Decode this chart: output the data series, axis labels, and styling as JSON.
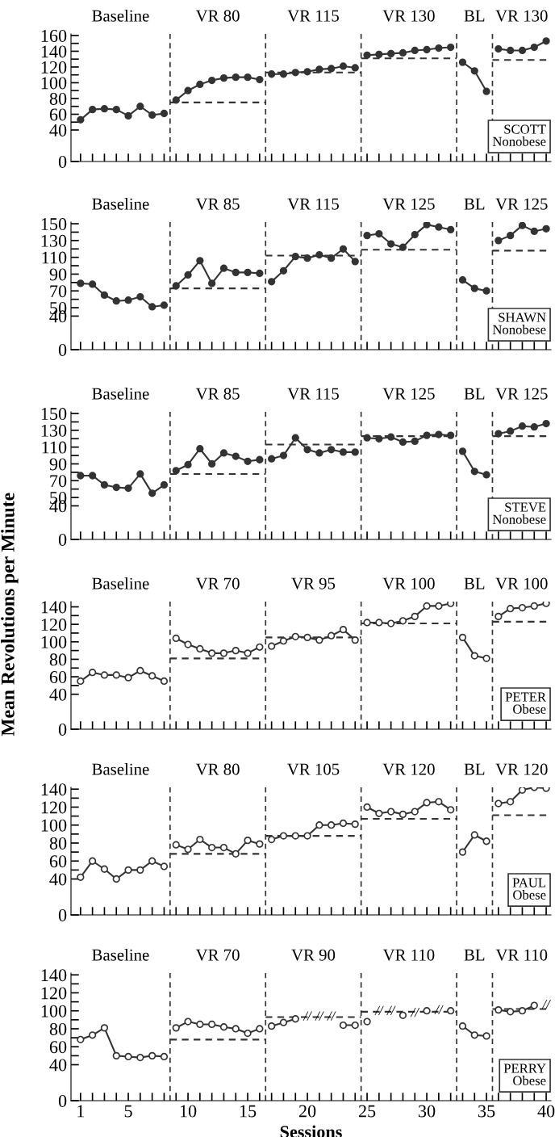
{
  "chart_data": [
    {
      "type": "line",
      "marker": "circle",
      "tick_labels": "y",
      "xlim": [
        0.2,
        40.4
      ],
      "xticks": [
        1,
        5,
        10,
        15,
        20,
        25,
        30,
        35,
        40
      ],
      "ylim": [
        0,
        162
      ],
      "yticks": [
        0,
        40,
        {
          "value": 50,
          "label": null
        },
        60,
        {
          "value": 70,
          "label": null
        },
        80,
        {
          "value": 90,
          "label": null
        },
        100,
        {
          "value": 110,
          "label": null
        },
        120,
        {
          "value": 130,
          "label": null
        },
        140,
        {
          "value": 150,
          "label": null
        },
        160
      ],
      "ref_lines": [
        {
          "axis": "x",
          "value": 8.5,
          "line_style": "dashed",
          "color": "#333333"
        },
        {
          "axis": "x",
          "value": 16.5,
          "line_style": "dashed",
          "color": "#333333"
        },
        {
          "axis": "x",
          "value": 24.5,
          "line_style": "dashed",
          "color": "#333333"
        },
        {
          "axis": "x",
          "value": 32.5,
          "line_style": "dashed",
          "color": "#333333"
        },
        {
          "axis": "x",
          "value": 35.5,
          "line_style": "dashed",
          "color": "#333333"
        }
      ],
      "annotations": [
        "Baseline",
        "VR 80",
        "VR 115",
        "VR 130",
        "BL",
        "VR 130",
        "SCOTT\nNonobese"
      ],
      "series": [
        {
          "color": "#333333",
          "line_style": "solid",
          "x": [
            1,
            2,
            3,
            4,
            5,
            6,
            7,
            8
          ],
          "values": [
            53,
            66,
            67,
            66,
            58,
            70,
            59,
            61
          ],
          "colors": [
            "#333333",
            "#333333",
            "#333333",
            "#333333",
            "#333333",
            "#333333",
            "#333333",
            "#333333"
          ]
        },
        {
          "color": "#333333",
          "line_style": "solid",
          "x": [
            9,
            10,
            11,
            12,
            13,
            14,
            15,
            16
          ],
          "values": [
            78,
            90,
            98,
            103,
            106,
            107,
            107,
            104
          ],
          "colors": [
            "#333333",
            "#333333",
            "#333333",
            "#333333",
            "#333333",
            "#333333",
            "#333333",
            "#333333"
          ]
        },
        {
          "color": "#333333",
          "line_style": "solid",
          "x": [
            17,
            18,
            19,
            20,
            21,
            22,
            23,
            24
          ],
          "values": [
            111,
            111,
            113,
            114,
            117,
            118,
            121,
            119
          ],
          "colors": [
            "#333333",
            "#333333",
            "#333333",
            "#333333",
            "#333333",
            "#333333",
            "#333333",
            "#333333"
          ]
        },
        {
          "color": "#333333",
          "line_style": "solid",
          "x": [
            25,
            26,
            27,
            28,
            29,
            30,
            31,
            32
          ],
          "values": [
            135,
            136,
            137,
            138,
            141,
            142,
            144,
            145
          ],
          "colors": [
            "#333333",
            "#333333",
            "#333333",
            "#333333",
            "#333333",
            "#333333",
            "#333333",
            "#333333"
          ]
        },
        {
          "color": "#333333",
          "line_style": "solid",
          "x": [
            33,
            34,
            35
          ],
          "values": [
            126,
            115,
            89
          ],
          "colors": [
            "#333333",
            "#333333",
            "#333333"
          ]
        },
        {
          "color": "#333333",
          "line_style": "solid",
          "x": [
            36,
            37,
            38,
            39,
            40
          ],
          "values": [
            143,
            141,
            141,
            145,
            153
          ],
          "colors": [
            "#333333",
            "#333333",
            "#333333",
            "#333333",
            "#333333"
          ]
        },
        {
          "color": "#333333",
          "line_style": "dashed",
          "marker": "none",
          "x": [
            8.5,
            16.5
          ],
          "values": [
            75,
            75
          ]
        },
        {
          "color": "#333333",
          "line_style": "dashed",
          "marker": "none",
          "x": [
            16.5,
            24.5
          ],
          "values": [
            113,
            113
          ]
        },
        {
          "color": "#333333",
          "line_style": "dashed",
          "marker": "none",
          "x": [
            24.5,
            32.5
          ],
          "values": [
            131,
            131
          ]
        },
        {
          "color": "#333333",
          "line_style": "dashed",
          "marker": "none",
          "x": [
            35.5,
            40.4
          ],
          "values": [
            129,
            129
          ]
        }
      ]
    },
    {
      "type": "line",
      "marker": "circle",
      "tick_labels": "y",
      "xlim": [
        0.2,
        40.4
      ],
      "xticks": [
        1,
        5,
        10,
        15,
        20,
        25,
        30,
        35,
        40
      ],
      "ylim": [
        0,
        152
      ],
      "yticks": [
        0,
        40,
        50,
        {
          "value": 60,
          "label": null
        },
        70,
        {
          "value": 80,
          "label": null
        },
        90,
        {
          "value": 100,
          "label": null
        },
        110,
        {
          "value": 120,
          "label": null
        },
        130,
        {
          "value": 140,
          "label": null
        },
        150
      ],
      "ref_lines": [
        {
          "axis": "x",
          "value": 8.5,
          "line_style": "dashed",
          "color": "#333333"
        },
        {
          "axis": "x",
          "value": 16.5,
          "line_style": "dashed",
          "color": "#333333"
        },
        {
          "axis": "x",
          "value": 24.5,
          "line_style": "dashed",
          "color": "#333333"
        },
        {
          "axis": "x",
          "value": 32.5,
          "line_style": "dashed",
          "color": "#333333"
        },
        {
          "axis": "x",
          "value": 35.5,
          "line_style": "dashed",
          "color": "#333333"
        }
      ],
      "annotations": [
        "Baseline",
        "VR 85",
        "VR 115",
        "VR 125",
        "BL",
        "VR 125",
        "SHAWN\nNonobese"
      ],
      "series": [
        {
          "color": "#333333",
          "line_style": "solid",
          "x": [
            1,
            2,
            3,
            4,
            5,
            6,
            7,
            8
          ],
          "values": [
            79,
            78,
            65,
            58,
            59,
            63,
            51,
            53
          ],
          "colors": [
            "#333333",
            "#333333",
            "#333333",
            "#333333",
            "#333333",
            "#333333",
            "#333333",
            "#333333"
          ]
        },
        {
          "color": "#333333",
          "line_style": "solid",
          "x": [
            9,
            10,
            11,
            12,
            13,
            14,
            15,
            16
          ],
          "values": [
            76,
            89,
            106,
            79,
            97,
            92,
            92,
            91
          ],
          "colors": [
            "#333333",
            "#333333",
            "#333333",
            "#333333",
            "#333333",
            "#333333",
            "#333333",
            "#333333"
          ]
        },
        {
          "color": "#333333",
          "line_style": "solid",
          "x": [
            17,
            18,
            19,
            20,
            21,
            22,
            23,
            24
          ],
          "values": [
            81,
            94,
            111,
            109,
            113,
            109,
            120,
            105
          ],
          "colors": [
            "#333333",
            "#333333",
            "#333333",
            "#333333",
            "#333333",
            "#333333",
            "#333333",
            "#333333"
          ]
        },
        {
          "color": "#333333",
          "line_style": "solid",
          "x": [
            25,
            26,
            27,
            28,
            29,
            30,
            31,
            32
          ],
          "values": [
            136,
            138,
            126,
            122,
            137,
            149,
            146,
            143
          ],
          "colors": [
            "#333333",
            "#333333",
            "#333333",
            "#333333",
            "#333333",
            "#333333",
            "#333333",
            "#333333"
          ]
        },
        {
          "color": "#333333",
          "line_style": "solid",
          "x": [
            33,
            34,
            35
          ],
          "values": [
            83,
            73,
            70
          ],
          "colors": [
            "#333333",
            "#333333",
            "#333333"
          ]
        },
        {
          "color": "#333333",
          "line_style": "solid",
          "x": [
            36,
            37,
            38,
            39,
            40
          ],
          "values": [
            130,
            136,
            148,
            141,
            144
          ],
          "colors": [
            "#333333",
            "#333333",
            "#333333",
            "#333333",
            "#333333"
          ]
        },
        {
          "color": "#333333",
          "line_style": "dashed",
          "marker": "none",
          "x": [
            8.5,
            16.5
          ],
          "values": [
            73,
            73
          ]
        },
        {
          "color": "#333333",
          "line_style": "dashed",
          "marker": "none",
          "x": [
            16.5,
            24.5
          ],
          "values": [
            112,
            112
          ]
        },
        {
          "color": "#333333",
          "line_style": "dashed",
          "marker": "none",
          "x": [
            24.5,
            32.5
          ],
          "values": [
            119,
            119
          ]
        },
        {
          "color": "#333333",
          "line_style": "dashed",
          "marker": "none",
          "x": [
            35.5,
            40.4
          ],
          "values": [
            118,
            118
          ]
        }
      ]
    },
    {
      "type": "line",
      "marker": "circle",
      "tick_labels": "y",
      "xlim": [
        0.2,
        40.4
      ],
      "xticks": [
        1,
        5,
        10,
        15,
        20,
        25,
        30,
        35,
        40
      ],
      "ylim": [
        0,
        152
      ],
      "yticks": [
        0,
        40,
        50,
        {
          "value": 60,
          "label": null
        },
        70,
        {
          "value": 80,
          "label": null
        },
        90,
        {
          "value": 100,
          "label": null
        },
        110,
        {
          "value": 120,
          "label": null
        },
        130,
        {
          "value": 140,
          "label": null
        },
        150
      ],
      "ref_lines": [
        {
          "axis": "x",
          "value": 8.5,
          "line_style": "dashed",
          "color": "#333333"
        },
        {
          "axis": "x",
          "value": 16.5,
          "line_style": "dashed",
          "color": "#333333"
        },
        {
          "axis": "x",
          "value": 24.5,
          "line_style": "dashed",
          "color": "#333333"
        },
        {
          "axis": "x",
          "value": 32.5,
          "line_style": "dashed",
          "color": "#333333"
        },
        {
          "axis": "x",
          "value": 35.5,
          "line_style": "dashed",
          "color": "#333333"
        }
      ],
      "annotations": [
        "Baseline",
        "VR 85",
        "VR 115",
        "VR 125",
        "BL",
        "VR 125",
        "STEVE\nNonobese"
      ],
      "series": [
        {
          "color": "#333333",
          "line_style": "solid",
          "x": [
            1,
            2,
            3,
            4,
            5,
            6,
            7,
            8
          ],
          "values": [
            76,
            76,
            65,
            62,
            61,
            78,
            55,
            65
          ],
          "colors": [
            "#333333",
            "#333333",
            "#333333",
            "#333333",
            "#333333",
            "#333333",
            "#333333",
            "#333333"
          ]
        },
        {
          "color": "#333333",
          "line_style": "solid",
          "x": [
            9,
            10,
            11,
            12,
            13,
            14,
            15,
            16
          ],
          "values": [
            82,
            89,
            108,
            90,
            103,
            99,
            93,
            95
          ],
          "colors": [
            "#333333",
            "#333333",
            "#333333",
            "#333333",
            "#333333",
            "#333333",
            "#333333",
            "#333333"
          ]
        },
        {
          "color": "#333333",
          "line_style": "solid",
          "x": [
            17,
            18,
            19,
            20,
            21,
            22,
            23,
            24
          ],
          "values": [
            96,
            100,
            121,
            107,
            103,
            107,
            104,
            104
          ],
          "colors": [
            "#333333",
            "#333333",
            "#333333",
            "#333333",
            "#333333",
            "#333333",
            "#333333",
            "#333333"
          ]
        },
        {
          "color": "#333333",
          "line_style": "solid",
          "x": [
            25,
            26,
            27,
            28,
            29,
            30,
            31,
            32
          ],
          "values": [
            121,
            120,
            122,
            116,
            117,
            124,
            125,
            124
          ],
          "colors": [
            "#333333",
            "#333333",
            "#333333",
            "#333333",
            "#333333",
            "#333333",
            "#333333",
            "#333333"
          ]
        },
        {
          "color": "#333333",
          "line_style": "solid",
          "x": [
            33,
            34,
            35
          ],
          "values": [
            105,
            81,
            77
          ],
          "colors": [
            "#333333",
            "#333333",
            "#333333"
          ]
        },
        {
          "color": "#333333",
          "line_style": "solid",
          "x": [
            36,
            37,
            38,
            39,
            40
          ],
          "values": [
            126,
            129,
            135,
            134,
            138
          ],
          "colors": [
            "#333333",
            "#333333",
            "#333333",
            "#333333",
            "#333333"
          ]
        },
        {
          "color": "#333333",
          "line_style": "dashed",
          "marker": "none",
          "x": [
            8.5,
            16.5
          ],
          "values": [
            78,
            78
          ]
        },
        {
          "color": "#333333",
          "line_style": "dashed",
          "marker": "none",
          "x": [
            16.5,
            24.5
          ],
          "values": [
            113,
            113
          ]
        },
        {
          "color": "#333333",
          "line_style": "dashed",
          "marker": "none",
          "x": [
            24.5,
            32.5
          ],
          "values": [
            123,
            123
          ]
        },
        {
          "color": "#333333",
          "line_style": "dashed",
          "marker": "none",
          "x": [
            35.5,
            40.4
          ],
          "values": [
            123,
            123
          ]
        }
      ]
    },
    {
      "type": "line",
      "marker": "circle",
      "tick_labels": "y",
      "ylabel": "Mean Revolutions per Minute",
      "xlim": [
        0.2,
        40.4
      ],
      "xticks": [
        1,
        5,
        10,
        15,
        20,
        25,
        30,
        35,
        40
      ],
      "ylim": [
        0,
        146
      ],
      "yticks": [
        0,
        40,
        {
          "value": 50,
          "label": null
        },
        60,
        {
          "value": 70,
          "label": null
        },
        80,
        {
          "value": 90,
          "label": null
        },
        100,
        {
          "value": 110,
          "label": null
        },
        120,
        {
          "value": 130,
          "label": null
        },
        140
      ],
      "ref_lines": [
        {
          "axis": "x",
          "value": 8.5,
          "line_style": "dashed",
          "color": "#333333"
        },
        {
          "axis": "x",
          "value": 16.5,
          "line_style": "dashed",
          "color": "#333333"
        },
        {
          "axis": "x",
          "value": 24.5,
          "line_style": "dashed",
          "color": "#333333"
        },
        {
          "axis": "x",
          "value": 32.5,
          "line_style": "dashed",
          "color": "#333333"
        },
        {
          "axis": "x",
          "value": 35.5,
          "line_style": "dashed",
          "color": "#333333"
        }
      ],
      "annotations": [
        "Baseline",
        "VR 70",
        "VR 95",
        "VR 100",
        "BL",
        "VR 100",
        "PETER\nObese"
      ],
      "series": [
        {
          "color": "#333333",
          "line_style": "solid",
          "x": [
            1,
            2,
            3,
            4,
            5,
            6,
            7,
            8
          ],
          "values": [
            55,
            65,
            62,
            62,
            59,
            67,
            61,
            55
          ],
          "colors": [
            "#ffffff",
            "#ffffff",
            "#ffffff",
            "#ffffff",
            "#ffffff",
            "#ffffff",
            "#ffffff",
            "#ffffff"
          ]
        },
        {
          "color": "#333333",
          "line_style": "solid",
          "x": [
            9,
            10,
            11,
            12,
            13,
            14,
            15,
            16
          ],
          "values": [
            104,
            97,
            92,
            87,
            87,
            90,
            87,
            94
          ],
          "colors": [
            "#ffffff",
            "#ffffff",
            "#ffffff",
            "#ffffff",
            "#ffffff",
            "#ffffff",
            "#ffffff",
            "#ffffff"
          ]
        },
        {
          "color": "#333333",
          "line_style": "solid",
          "x": [
            17,
            18,
            19,
            20,
            21,
            22,
            23,
            24
          ],
          "values": [
            95,
            101,
            106,
            105,
            102,
            107,
            114,
            102
          ],
          "colors": [
            "#ffffff",
            "#ffffff",
            "#ffffff",
            "#ffffff",
            "#ffffff",
            "#ffffff",
            "#ffffff",
            "#ffffff"
          ]
        },
        {
          "color": "#333333",
          "line_style": "solid",
          "x": [
            25,
            26,
            27,
            28,
            29,
            30,
            31,
            32
          ],
          "values": [
            122,
            122,
            121,
            124,
            129,
            141,
            141,
            144
          ],
          "colors": [
            "#ffffff",
            "#ffffff",
            "#ffffff",
            "#ffffff",
            "#ffffff",
            "#ffffff",
            "#ffffff",
            "#ffffff"
          ]
        },
        {
          "color": "#333333",
          "line_style": "solid",
          "x": [
            33,
            34,
            35
          ],
          "values": [
            105,
            84,
            81
          ],
          "colors": [
            "#ffffff",
            "#ffffff",
            "#ffffff"
          ]
        },
        {
          "color": "#333333",
          "line_style": "solid",
          "x": [
            36,
            37,
            38,
            39,
            40
          ],
          "values": [
            129,
            138,
            139,
            141,
            144
          ],
          "colors": [
            "#ffffff",
            "#ffffff",
            "#ffffff",
            "#ffffff",
            "#ffffff"
          ]
        },
        {
          "color": "#333333",
          "line_style": "dashed",
          "marker": "none",
          "x": [
            8.5,
            16.5
          ],
          "values": [
            81,
            81
          ]
        },
        {
          "color": "#333333",
          "line_style": "dashed",
          "marker": "none",
          "x": [
            16.5,
            24.5
          ],
          "values": [
            105,
            105
          ]
        },
        {
          "color": "#333333",
          "line_style": "dashed",
          "marker": "none",
          "x": [
            24.5,
            32.5
          ],
          "values": [
            121,
            121
          ]
        },
        {
          "color": "#333333",
          "line_style": "dashed",
          "marker": "none",
          "x": [
            35.5,
            40.4
          ],
          "values": [
            123,
            123
          ]
        }
      ]
    },
    {
      "type": "line",
      "marker": "circle",
      "tick_labels": "y",
      "xlim": [
        0.2,
        40.4
      ],
      "xticks": [
        1,
        5,
        10,
        15,
        20,
        25,
        30,
        35,
        40
      ],
      "ylim": [
        0,
        142
      ],
      "yticks": [
        0,
        40,
        {
          "value": 50,
          "label": null
        },
        60,
        {
          "value": 70,
          "label": null
        },
        80,
        {
          "value": 90,
          "label": null
        },
        100,
        {
          "value": 110,
          "label": null
        },
        120,
        {
          "value": 130,
          "label": null
        },
        140
      ],
      "ref_lines": [
        {
          "axis": "x",
          "value": 8.5,
          "line_style": "dashed",
          "color": "#333333"
        },
        {
          "axis": "x",
          "value": 16.5,
          "line_style": "dashed",
          "color": "#333333"
        },
        {
          "axis": "x",
          "value": 24.5,
          "line_style": "dashed",
          "color": "#333333"
        },
        {
          "axis": "x",
          "value": 32.5,
          "line_style": "dashed",
          "color": "#333333"
        },
        {
          "axis": "x",
          "value": 35.5,
          "line_style": "dashed",
          "color": "#333333"
        }
      ],
      "annotations": [
        "Baseline",
        "VR 80",
        "VR 105",
        "VR 120",
        "BL",
        "VR 120",
        "PAUL\nObese"
      ],
      "series": [
        {
          "color": "#333333",
          "line_style": "solid",
          "x": [
            1,
            2,
            3,
            4,
            5,
            6,
            7,
            8
          ],
          "values": [
            42,
            60,
            51,
            40,
            50,
            50,
            60,
            54
          ],
          "colors": [
            "#ffffff",
            "#ffffff",
            "#ffffff",
            "#ffffff",
            "#ffffff",
            "#ffffff",
            "#ffffff",
            "#ffffff"
          ]
        },
        {
          "color": "#333333",
          "line_style": "solid",
          "x": [
            9,
            10,
            11,
            12,
            13,
            14,
            15,
            16
          ],
          "values": [
            78,
            73,
            84,
            75,
            75,
            68,
            83,
            79
          ],
          "colors": [
            "#ffffff",
            "#ffffff",
            "#ffffff",
            "#ffffff",
            "#ffffff",
            "#ffffff",
            "#ffffff",
            "#ffffff"
          ]
        },
        {
          "color": "#333333",
          "line_style": "solid",
          "x": [
            17,
            18,
            19,
            20,
            21,
            22,
            23,
            24
          ],
          "values": [
            84,
            88,
            88,
            88,
            100,
            100,
            102,
            101
          ],
          "colors": [
            "#ffffff",
            "#ffffff",
            "#ffffff",
            "#ffffff",
            "#ffffff",
            "#ffffff",
            "#ffffff",
            "#ffffff"
          ]
        },
        {
          "color": "#333333",
          "line_style": "solid",
          "x": [
            25,
            26,
            27,
            28,
            29,
            30,
            31,
            32
          ],
          "values": [
            120,
            113,
            115,
            112,
            115,
            125,
            126,
            117
          ],
          "colors": [
            "#ffffff",
            "#ffffff",
            "#ffffff",
            "#ffffff",
            "#ffffff",
            "#ffffff",
            "#ffffff",
            "#ffffff"
          ]
        },
        {
          "color": "#333333",
          "line_style": "solid",
          "x": [
            33,
            34,
            35
          ],
          "values": [
            70,
            89,
            82
          ],
          "colors": [
            "#ffffff",
            "#ffffff",
            "#ffffff"
          ]
        },
        {
          "color": "#333333",
          "line_style": "solid",
          "x": [
            36,
            37,
            38,
            39,
            40
          ],
          "values": [
            124,
            126,
            139,
            142,
            141
          ],
          "colors": [
            "#ffffff",
            "#ffffff",
            "#ffffff",
            "#ffffff",
            "#ffffff"
          ]
        },
        {
          "color": "#333333",
          "line_style": "dashed",
          "marker": "none",
          "x": [
            8.5,
            16.5
          ],
          "values": [
            68,
            68
          ]
        },
        {
          "color": "#333333",
          "line_style": "dashed",
          "marker": "none",
          "x": [
            16.5,
            24.5
          ],
          "values": [
            88,
            88
          ]
        },
        {
          "color": "#333333",
          "line_style": "dashed",
          "marker": "none",
          "x": [
            24.5,
            32.5
          ],
          "values": [
            107,
            107
          ]
        },
        {
          "color": "#333333",
          "line_style": "dashed",
          "marker": "none",
          "x": [
            35.5,
            40.4
          ],
          "values": [
            111,
            111
          ]
        }
      ]
    },
    {
      "type": "line",
      "marker": "circle",
      "xlabel": "Sessions",
      "xlim": [
        0.2,
        40.4
      ],
      "xticks": [
        1,
        5,
        10,
        15,
        20,
        25,
        30,
        35,
        40
      ],
      "ylim": [
        0,
        142
      ],
      "yticks": [
        0,
        40,
        {
          "value": 50,
          "label": null
        },
        60,
        {
          "value": 70,
          "label": null
        },
        80,
        {
          "value": 90,
          "label": null
        },
        100,
        {
          "value": 110,
          "label": null
        },
        120,
        {
          "value": 130,
          "label": null
        },
        140
      ],
      "ref_lines": [
        {
          "axis": "x",
          "value": 8.5,
          "line_style": "dashed",
          "color": "#333333"
        },
        {
          "axis": "x",
          "value": 16.5,
          "line_style": "dashed",
          "color": "#333333"
        },
        {
          "axis": "x",
          "value": 24.5,
          "line_style": "dashed",
          "color": "#333333"
        },
        {
          "axis": "x",
          "value": 32.5,
          "line_style": "dashed",
          "color": "#333333"
        },
        {
          "axis": "x",
          "value": 35.5,
          "line_style": "dashed",
          "color": "#333333"
        }
      ],
      "annotations": [
        "Baseline",
        "VR 70",
        "VR 90",
        "VR 110",
        "BL",
        "VR 110",
        "PERRY\nObese",
        {
          "text": "//",
          "x": 20,
          "y": 93
        },
        {
          "text": "//",
          "x": 21,
          "y": 93
        },
        {
          "text": "//",
          "x": 22,
          "y": 93
        },
        {
          "text": "//",
          "x": 26,
          "y": 99
        },
        {
          "text": "//",
          "x": 27,
          "y": 99
        },
        {
          "text": "//",
          "x": 29,
          "y": 97
        },
        {
          "text": "//",
          "x": 31,
          "y": 100
        },
        {
          "text": "//",
          "x": 40,
          "y": 106
        }
      ],
      "series": [
        {
          "color": "#333333",
          "line_style": "solid",
          "x": [
            1,
            2,
            3,
            4,
            5,
            6,
            7,
            8
          ],
          "values": [
            68,
            73,
            81,
            50,
            49,
            48,
            50,
            49
          ],
          "colors": [
            "#ffffff",
            "#ffffff",
            "#ffffff",
            "#ffffff",
            "#ffffff",
            "#ffffff",
            "#ffffff",
            "#ffffff"
          ]
        },
        {
          "color": "#333333",
          "line_style": "solid",
          "x": [
            9,
            10,
            11,
            12,
            13,
            14,
            15,
            16
          ],
          "values": [
            81,
            88,
            85,
            85,
            82,
            80,
            75,
            80
          ],
          "colors": [
            "#ffffff",
            "#ffffff",
            "#ffffff",
            "#ffffff",
            "#ffffff",
            "#ffffff",
            "#ffffff",
            "#ffffff"
          ]
        },
        {
          "color": "#333333",
          "line_style": "solid",
          "x": [
            17,
            18,
            19,
            20,
            21,
            22,
            23,
            24
          ],
          "values": [
            83,
            87,
            91,
            null,
            null,
            null,
            84,
            84
          ],
          "colors": [
            "#ffffff",
            "#ffffff",
            "#ffffff",
            "#ffffff",
            "#ffffff",
            "#ffffff",
            "#ffffff",
            "#ffffff"
          ]
        },
        {
          "color": "#333333",
          "line_style": "solid",
          "x": [
            25,
            26,
            27,
            28,
            29,
            30,
            31,
            32
          ],
          "values": [
            88,
            null,
            null,
            95,
            null,
            100,
            null,
            100
          ],
          "colors": [
            "#ffffff",
            "#ffffff",
            "#ffffff",
            "#ffffff",
            "#ffffff",
            "#ffffff",
            "#ffffff",
            "#ffffff"
          ]
        },
        {
          "color": "#333333",
          "line_style": "solid",
          "x": [
            33,
            34,
            35
          ],
          "values": [
            83,
            73,
            72
          ],
          "colors": [
            "#ffffff",
            "#ffffff",
            "#ffffff"
          ]
        },
        {
          "color": "#333333",
          "line_style": "solid",
          "x": [
            36,
            37,
            38,
            39
          ],
          "values": [
            101,
            99,
            100,
            106
          ],
          "colors": [
            "#ffffff",
            "#ffffff",
            "#ffffff",
            "#ffffff"
          ]
        },
        {
          "color": "#333333",
          "line_style": "dashed",
          "marker": "none",
          "x": [
            8.5,
            16.5
          ],
          "values": [
            68,
            68
          ]
        },
        {
          "color": "#333333",
          "line_style": "dashed",
          "marker": "none",
          "x": [
            16.5,
            24.5
          ],
          "values": [
            93,
            93
          ]
        },
        {
          "color": "#333333",
          "line_style": "dashed",
          "marker": "none",
          "x": [
            24.5,
            32.5
          ],
          "values": [
            99,
            99
          ]
        },
        {
          "color": "#333333",
          "line_style": "dashed",
          "marker": "none",
          "x": [
            35.5,
            40.4
          ],
          "values": [
            102,
            102
          ]
        }
      ]
    }
  ]
}
